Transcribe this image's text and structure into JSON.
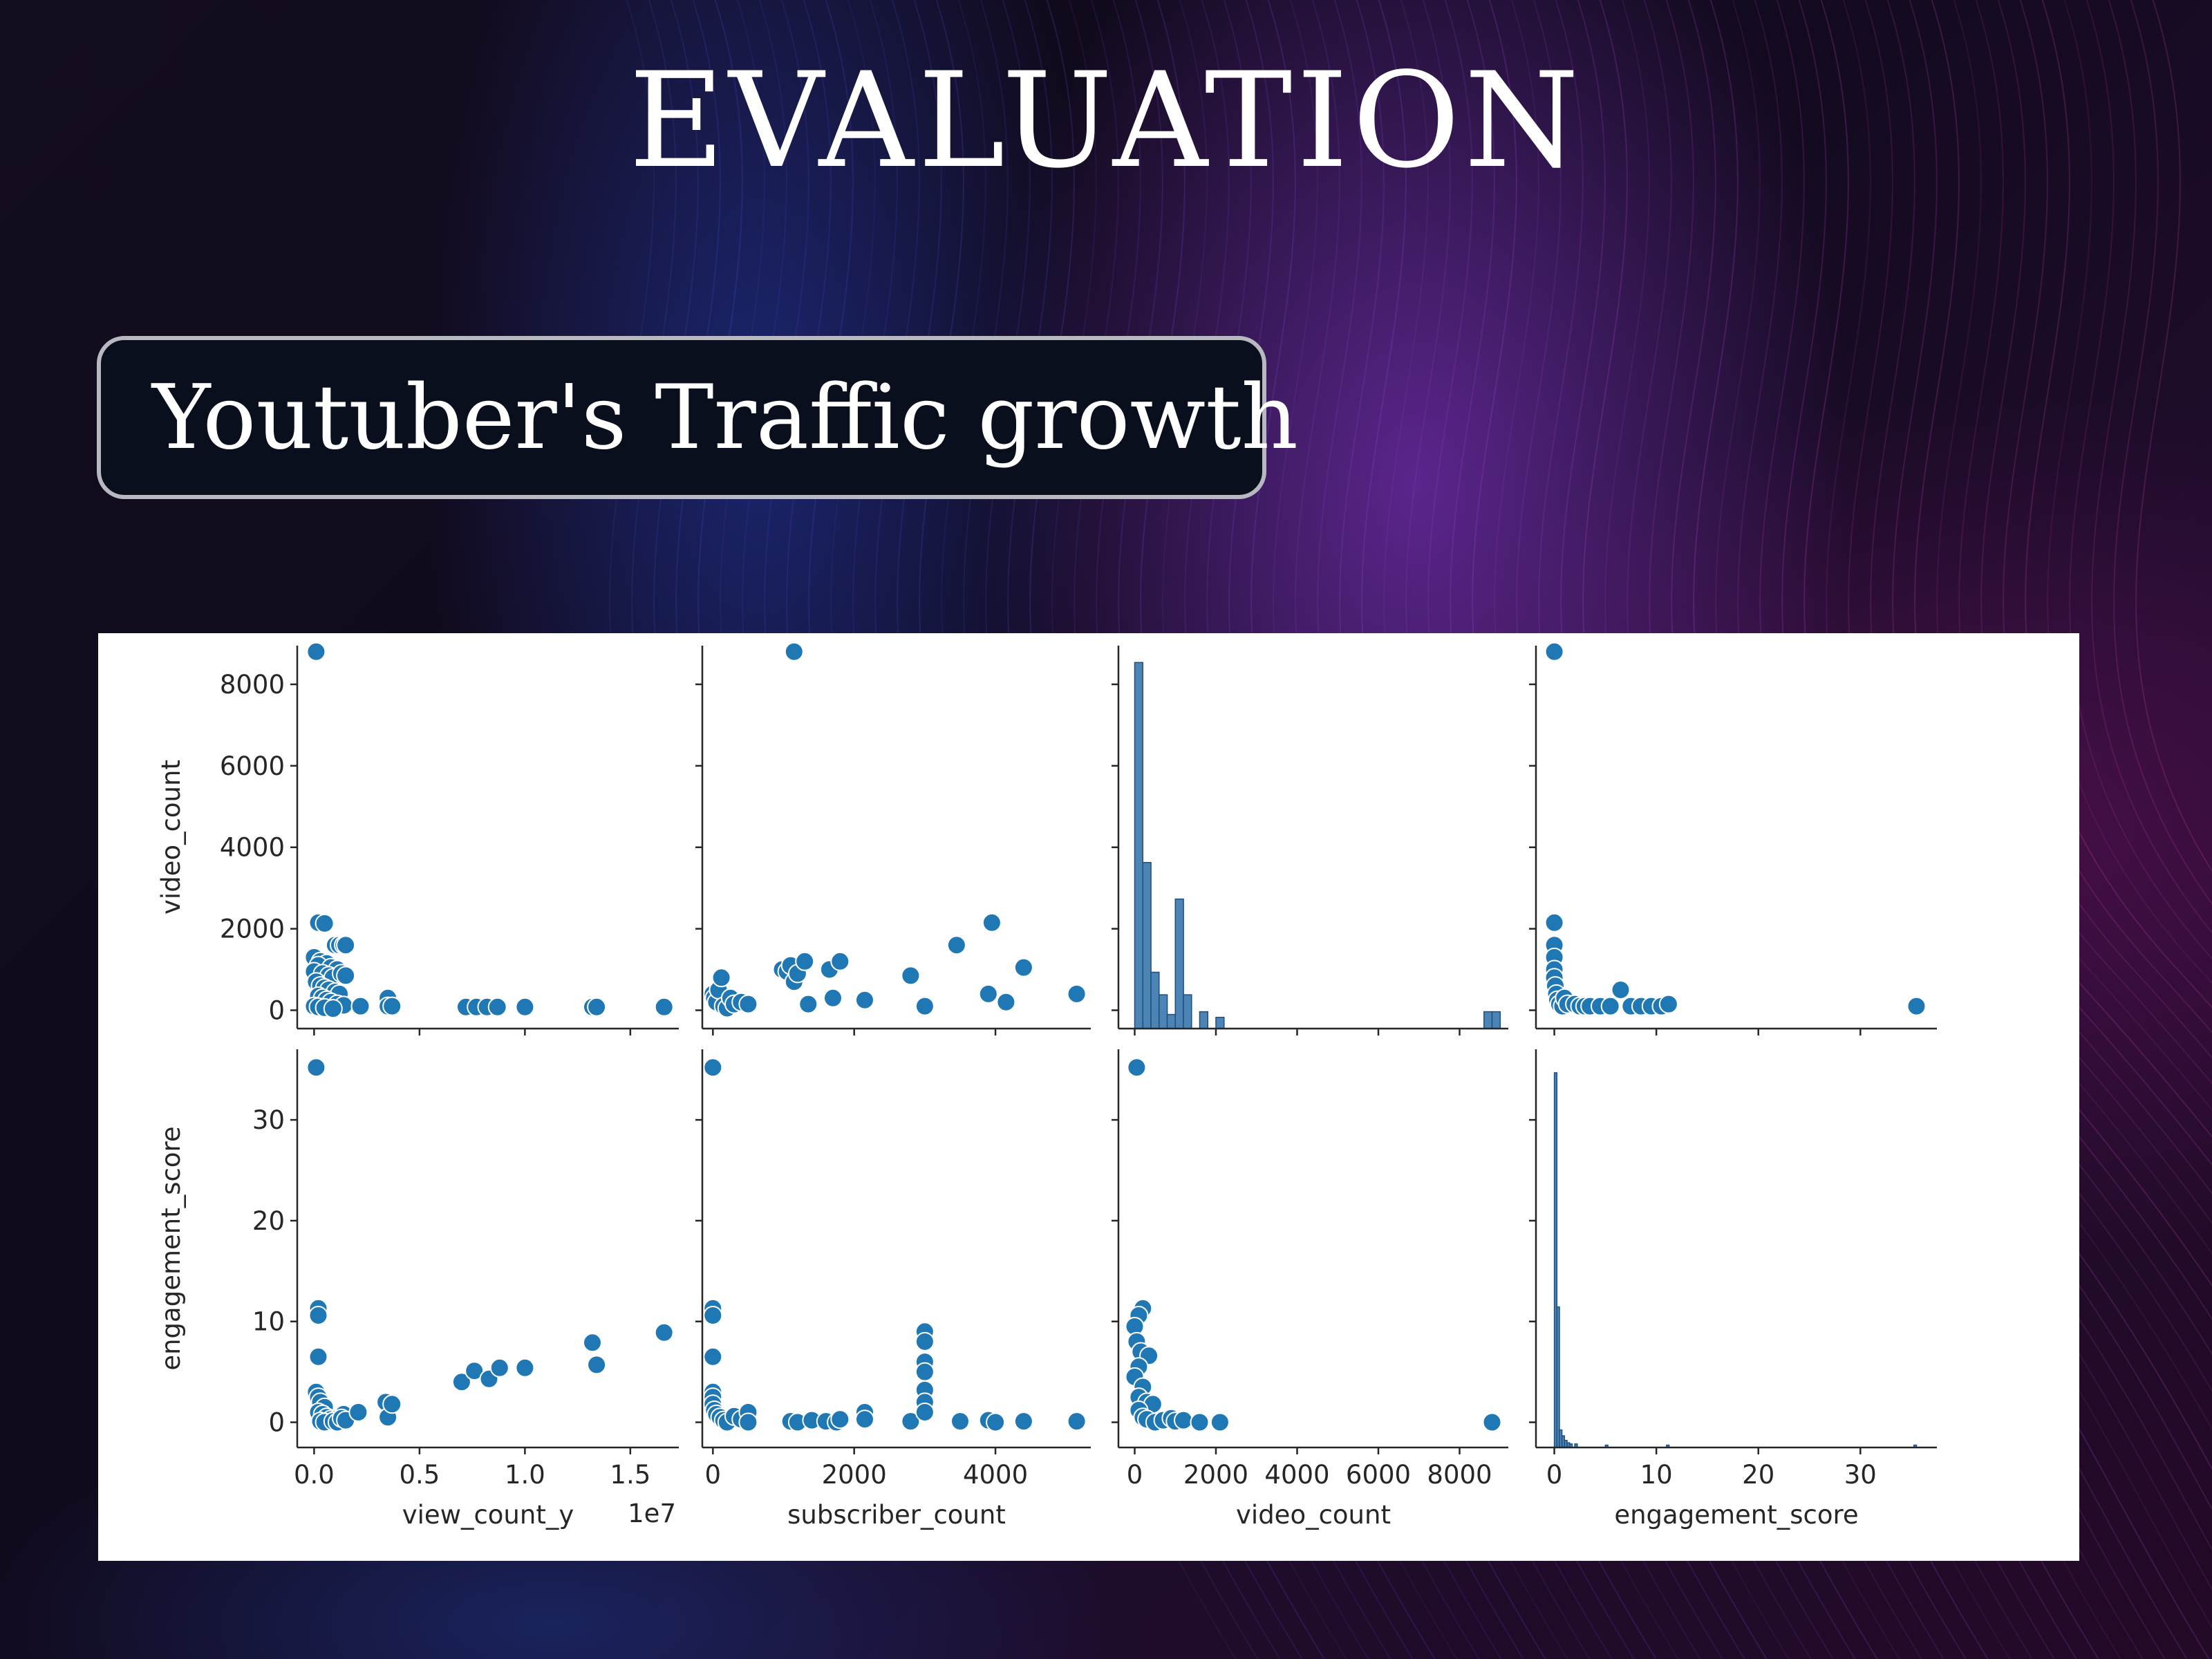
{
  "slide": {
    "title": "EVALUATION",
    "subtitle": "Youtuber's Traffic growth"
  },
  "colors": {
    "marker": "#1f77b4",
    "marker_edge": "#ffffff",
    "hist_fill": "#4c84b5",
    "axes": "#262626"
  },
  "chart_data": [
    {
      "type": "scatter",
      "x_var": "view_count_y",
      "y_var": "video_count",
      "xlim": [
        -0.08,
        1.73
      ],
      "ylim": [
        -450,
        8950
      ],
      "x_offset_label": "1e7",
      "points": [
        [
          0.01,
          8800
        ],
        [
          0.02,
          2150
        ],
        [
          0.05,
          2130
        ],
        [
          0.0,
          1300
        ],
        [
          0.03,
          1200
        ],
        [
          0.06,
          1150
        ],
        [
          0.02,
          1100
        ],
        [
          0.08,
          1050
        ],
        [
          0.11,
          1000
        ],
        [
          0.0,
          950
        ],
        [
          0.04,
          900
        ],
        [
          0.07,
          850
        ],
        [
          0.09,
          800
        ],
        [
          0.13,
          900
        ],
        [
          0.15,
          850
        ],
        [
          0.01,
          700
        ],
        [
          0.03,
          600
        ],
        [
          0.05,
          550
        ],
        [
          0.07,
          500
        ],
        [
          0.1,
          450
        ],
        [
          0.12,
          400
        ],
        [
          0.02,
          350
        ],
        [
          0.04,
          300
        ],
        [
          0.06,
          250
        ],
        [
          0.08,
          200
        ],
        [
          0.11,
          150
        ],
        [
          0.14,
          120
        ],
        [
          0.0,
          100
        ],
        [
          0.02,
          80
        ],
        [
          0.05,
          60
        ],
        [
          0.09,
          40
        ],
        [
          0.1,
          1600
        ],
        [
          0.12,
          1600
        ],
        [
          0.14,
          1600
        ],
        [
          0.15,
          1600
        ],
        [
          0.22,
          100
        ],
        [
          0.35,
          300
        ],
        [
          0.35,
          100
        ],
        [
          0.37,
          100
        ],
        [
          0.72,
          80
        ],
        [
          0.77,
          80
        ],
        [
          0.82,
          80
        ],
        [
          0.87,
          80
        ],
        [
          1.0,
          80
        ],
        [
          1.32,
          80
        ],
        [
          1.34,
          80
        ],
        [
          1.66,
          80
        ]
      ]
    },
    {
      "type": "scatter",
      "x_var": "subscriber_count",
      "y_var": "video_count",
      "xlim": [
        -150,
        5350
      ],
      "ylim": [
        -450,
        8950
      ],
      "points": [
        [
          1150,
          8800
        ],
        [
          0,
          400
        ],
        [
          20,
          300
        ],
        [
          50,
          200
        ],
        [
          80,
          500
        ],
        [
          120,
          800
        ],
        [
          150,
          100
        ],
        [
          200,
          50
        ],
        [
          250,
          300
        ],
        [
          300,
          150
        ],
        [
          400,
          200
        ],
        [
          500,
          150
        ],
        [
          980,
          1000
        ],
        [
          1050,
          950
        ],
        [
          1100,
          1100
        ],
        [
          1150,
          700
        ],
        [
          1200,
          900
        ],
        [
          1300,
          1200
        ],
        [
          1350,
          150
        ],
        [
          1650,
          1000
        ],
        [
          1700,
          300
        ],
        [
          1800,
          1200
        ],
        [
          2150,
          250
        ],
        [
          2800,
          850
        ],
        [
          3000,
          100
        ],
        [
          3450,
          1600
        ],
        [
          3900,
          400
        ],
        [
          3950,
          2150
        ],
        [
          4150,
          200
        ],
        [
          4400,
          1050
        ],
        [
          5150,
          400
        ]
      ]
    },
    {
      "type": "histogram",
      "x_var": "video_count",
      "xlim": [
        -400,
        9200
      ],
      "bin_width": 200,
      "bins": [
        [
          0,
          6500
        ],
        [
          200,
          2950
        ],
        [
          400,
          1000
        ],
        [
          600,
          600
        ],
        [
          800,
          250
        ],
        [
          1000,
          2300
        ],
        [
          1200,
          600
        ],
        [
          1600,
          300
        ],
        [
          2000,
          200
        ],
        [
          8600,
          300
        ],
        [
          8800,
          300
        ]
      ],
      "count_max": 6800
    },
    {
      "type": "scatter",
      "x_var": "engagement_score",
      "y_var": "video_count",
      "xlim": [
        -1.8,
        37.5
      ],
      "ylim": [
        -450,
        8950
      ],
      "points": [
        [
          0.0,
          8800
        ],
        [
          0.0,
          2150
        ],
        [
          0.0,
          1600
        ],
        [
          0.0,
          1300
        ],
        [
          0.0,
          1000
        ],
        [
          0.0,
          800
        ],
        [
          0.1,
          600
        ],
        [
          0.2,
          400
        ],
        [
          0.3,
          250
        ],
        [
          0.5,
          150
        ],
        [
          0.8,
          100
        ],
        [
          1.0,
          300
        ],
        [
          1.3,
          150
        ],
        [
          2.0,
          150
        ],
        [
          2.5,
          100
        ],
        [
          3.0,
          100
        ],
        [
          3.5,
          100
        ],
        [
          4.5,
          100
        ],
        [
          5.5,
          100
        ],
        [
          6.5,
          500
        ],
        [
          7.5,
          100
        ],
        [
          8.5,
          100
        ],
        [
          9.5,
          100
        ],
        [
          10.5,
          100
        ],
        [
          11.2,
          150
        ],
        [
          35.5,
          100
        ]
      ]
    },
    {
      "type": "scatter",
      "x_var": "view_count_y",
      "y_var": "engagement_score",
      "xlim": [
        -0.08,
        1.73
      ],
      "ylim": [
        -2.5,
        37
      ],
      "points": [
        [
          0.01,
          35.2
        ],
        [
          0.02,
          11.3
        ],
        [
          0.02,
          10.6
        ],
        [
          0.02,
          6.5
        ],
        [
          0.01,
          3.0
        ],
        [
          0.02,
          2.5
        ],
        [
          0.03,
          2.0
        ],
        [
          0.05,
          1.5
        ],
        [
          0.02,
          1.0
        ],
        [
          0.04,
          0.8
        ],
        [
          0.06,
          0.5
        ],
        [
          0.08,
          0.3
        ],
        [
          0.1,
          0.2
        ],
        [
          0.12,
          0.5
        ],
        [
          0.14,
          0.8
        ],
        [
          0.03,
          0.1
        ],
        [
          0.05,
          0.0
        ],
        [
          0.09,
          0.1
        ],
        [
          0.11,
          0.0
        ],
        [
          0.13,
          0.4
        ],
        [
          0.15,
          0.2
        ],
        [
          0.21,
          1.0
        ],
        [
          0.34,
          2.0
        ],
        [
          0.35,
          0.5
        ],
        [
          0.37,
          1.8
        ],
        [
          0.7,
          4.0
        ],
        [
          0.76,
          5.1
        ],
        [
          0.83,
          4.3
        ],
        [
          0.88,
          5.4
        ],
        [
          1.0,
          5.4
        ],
        [
          1.32,
          7.9
        ],
        [
          1.34,
          5.7
        ],
        [
          1.66,
          8.9
        ]
      ]
    },
    {
      "type": "scatter",
      "x_var": "subscriber_count",
      "y_var": "engagement_score",
      "xlim": [
        -150,
        5350
      ],
      "ylim": [
        -2.5,
        37
      ],
      "points": [
        [
          0,
          35.2
        ],
        [
          0,
          11.3
        ],
        [
          0,
          10.6
        ],
        [
          0,
          6.5
        ],
        [
          0,
          3.0
        ],
        [
          0,
          2.5
        ],
        [
          0,
          1.8
        ],
        [
          20,
          1.2
        ],
        [
          50,
          0.8
        ],
        [
          100,
          0.5
        ],
        [
          150,
          0.2
        ],
        [
          200,
          0.0
        ],
        [
          300,
          0.6
        ],
        [
          400,
          0.3
        ],
        [
          500,
          1.0
        ],
        [
          500,
          0.0
        ],
        [
          1100,
          0.1
        ],
        [
          1200,
          0.0
        ],
        [
          1400,
          0.2
        ],
        [
          1600,
          0.1
        ],
        [
          1750,
          0.0
        ],
        [
          1800,
          0.3
        ],
        [
          2150,
          1.0
        ],
        [
          2150,
          0.3
        ],
        [
          2800,
          0.1
        ],
        [
          3000,
          9.0
        ],
        [
          3000,
          8.0
        ],
        [
          3000,
          6.0
        ],
        [
          3000,
          5.0
        ],
        [
          3000,
          3.2
        ],
        [
          3000,
          2.0
        ],
        [
          3000,
          1.0
        ],
        [
          3500,
          0.1
        ],
        [
          3900,
          0.2
        ],
        [
          4000,
          0.0
        ],
        [
          4400,
          0.1
        ],
        [
          5150,
          0.1
        ]
      ]
    },
    {
      "type": "scatter",
      "x_var": "video_count",
      "y_var": "engagement_score",
      "xlim": [
        -400,
        9200
      ],
      "ylim": [
        -2.5,
        37
      ],
      "points": [
        [
          50,
          35.2
        ],
        [
          200,
          11.3
        ],
        [
          100,
          10.6
        ],
        [
          0,
          9.5
        ],
        [
          50,
          8.0
        ],
        [
          150,
          7.0
        ],
        [
          350,
          6.6
        ],
        [
          100,
          5.5
        ],
        [
          0,
          4.5
        ],
        [
          200,
          3.5
        ],
        [
          100,
          2.5
        ],
        [
          300,
          2.0
        ],
        [
          450,
          1.8
        ],
        [
          100,
          1.2
        ],
        [
          200,
          0.5
        ],
        [
          300,
          0.3
        ],
        [
          500,
          0.0
        ],
        [
          700,
          0.2
        ],
        [
          900,
          0.4
        ],
        [
          1000,
          0.1
        ],
        [
          1200,
          0.2
        ],
        [
          1600,
          0.0
        ],
        [
          2100,
          0.0
        ],
        [
          8800,
          0.0
        ]
      ]
    },
    {
      "type": "histogram",
      "x_var": "engagement_score",
      "xlim": [
        -1.8,
        37.5
      ],
      "bin_width": 0.25,
      "bins": [
        [
          0,
          32
        ],
        [
          0.25,
          12
        ],
        [
          0.5,
          1.5
        ],
        [
          0.75,
          1.0
        ],
        [
          1.0,
          0.6
        ],
        [
          1.25,
          0.4
        ],
        [
          1.5,
          0.3
        ],
        [
          2.0,
          0.3
        ],
        [
          5.0,
          0.2
        ],
        [
          11.0,
          0.2
        ],
        [
          35.25,
          0.2
        ]
      ],
      "count_max": 34
    }
  ],
  "axes_labels": {
    "row_labels": [
      "video_count",
      "engagement_score"
    ],
    "col_labels": [
      "view_count_y",
      "subscriber_count",
      "video_count",
      "engagement_score"
    ],
    "offset_text": "1e7",
    "row0_ticks": [
      {
        "v": 0,
        "t": "0"
      },
      {
        "v": 2000,
        "t": "2000"
      },
      {
        "v": 4000,
        "t": "4000"
      },
      {
        "v": 6000,
        "t": "6000"
      },
      {
        "v": 8000,
        "t": "8000"
      }
    ],
    "row1_ticks": [
      {
        "v": 0,
        "t": "0"
      },
      {
        "v": 10,
        "t": "10"
      },
      {
        "v": 20,
        "t": "20"
      },
      {
        "v": 30,
        "t": "30"
      }
    ],
    "col_ticks": [
      [
        {
          "v": 0.0,
          "t": "0.0"
        },
        {
          "v": 0.5,
          "t": "0.5"
        },
        {
          "v": 1.0,
          "t": "1.0"
        },
        {
          "v": 1.5,
          "t": "1.5"
        }
      ],
      [
        {
          "v": 0,
          "t": "0"
        },
        {
          "v": 2000,
          "t": "2000"
        },
        {
          "v": 4000,
          "t": "4000"
        }
      ],
      [
        {
          "v": 0,
          "t": "0"
        },
        {
          "v": 2000,
          "t": "2000"
        },
        {
          "v": 4000,
          "t": "4000"
        },
        {
          "v": 6000,
          "t": "6000"
        },
        {
          "v": 8000,
          "t": "8000"
        }
      ],
      [
        {
          "v": 0,
          "t": "0"
        },
        {
          "v": 10,
          "t": "10"
        },
        {
          "v": 20,
          "t": "20"
        },
        {
          "v": 30,
          "t": "30"
        }
      ]
    ]
  }
}
